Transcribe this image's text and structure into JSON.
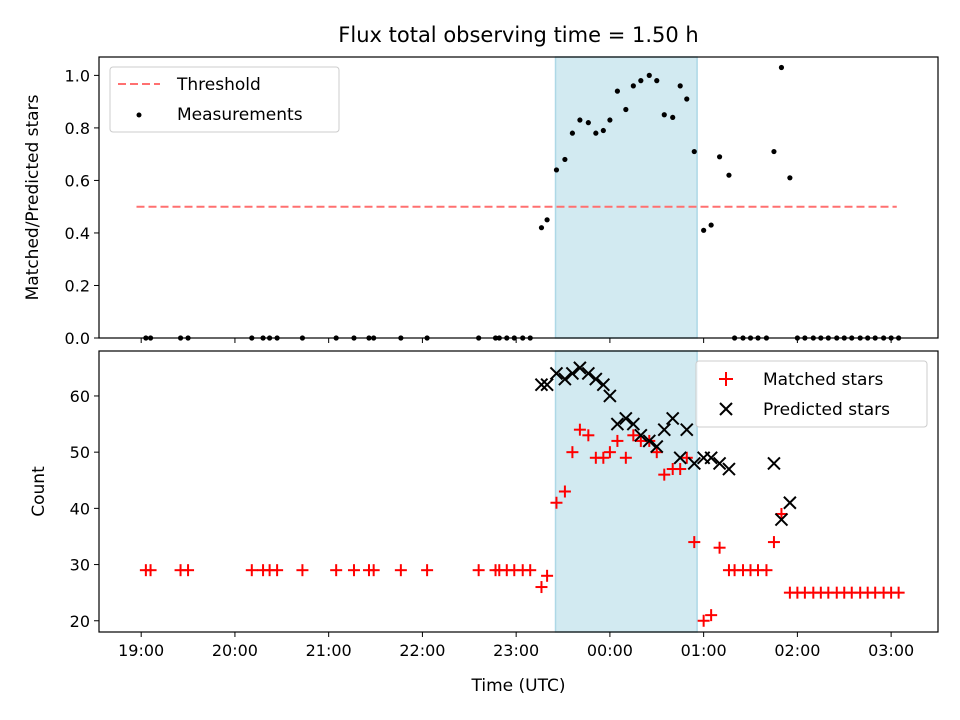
{
  "title": "Flux total observing time = 1.50 h",
  "colors": {
    "threshold": "#ff7070",
    "shade": "#add8e6",
    "matched": "#ff0000",
    "predicted": "#000000",
    "measure": "#000000"
  },
  "chart_data": [
    {
      "type": "scatter",
      "ylabel": "Matched/Predicted stars",
      "xlabel": "",
      "xlim": [
        18.55,
        27.5
      ],
      "ylim": [
        0,
        1.07
      ],
      "yticks": [
        0.0,
        0.2,
        0.4,
        0.6,
        0.8,
        1.0
      ],
      "ytick_labels": [
        "0.0",
        "0.2",
        "0.4",
        "0.6",
        "0.8",
        "1.0"
      ],
      "shaded_span": [
        23.42,
        24.93
      ],
      "legend": {
        "placement": "upper left",
        "entries": [
          "Threshold",
          "Measurements"
        ]
      },
      "threshold": {
        "name": "Threshold",
        "y": 0.5,
        "x": [
          18.95,
          27.06
        ],
        "style": "dashed"
      },
      "series": [
        {
          "name": "Measurements",
          "marker": "dot",
          "points": [
            [
              19.05,
              0
            ],
            [
              19.1,
              0
            ],
            [
              19.42,
              0
            ],
            [
              19.5,
              0
            ],
            [
              20.18,
              0
            ],
            [
              20.3,
              0
            ],
            [
              20.37,
              0
            ],
            [
              20.45,
              0
            ],
            [
              20.72,
              0
            ],
            [
              21.08,
              0
            ],
            [
              21.27,
              0
            ],
            [
              21.43,
              0
            ],
            [
              21.48,
              0
            ],
            [
              21.77,
              0
            ],
            [
              22.05,
              0
            ],
            [
              22.6,
              0
            ],
            [
              22.78,
              0
            ],
            [
              22.82,
              0
            ],
            [
              22.9,
              0
            ],
            [
              22.98,
              0
            ],
            [
              23.07,
              0
            ],
            [
              23.15,
              0
            ],
            [
              23.27,
              0.42
            ],
            [
              23.33,
              0.45
            ],
            [
              23.43,
              0.64
            ],
            [
              23.52,
              0.68
            ],
            [
              23.6,
              0.78
            ],
            [
              23.68,
              0.83
            ],
            [
              23.77,
              0.82
            ],
            [
              23.85,
              0.78
            ],
            [
              23.93,
              0.79
            ],
            [
              24.0,
              0.83
            ],
            [
              24.08,
              0.94
            ],
            [
              24.17,
              0.87
            ],
            [
              24.25,
              0.96
            ],
            [
              24.33,
              0.98
            ],
            [
              24.42,
              1.0
            ],
            [
              24.5,
              0.98
            ],
            [
              24.58,
              0.85
            ],
            [
              24.67,
              0.84
            ],
            [
              24.75,
              0.96
            ],
            [
              24.82,
              0.91
            ],
            [
              24.9,
              0.71
            ],
            [
              25.0,
              0.41
            ],
            [
              25.08,
              0.43
            ],
            [
              25.17,
              0.69
            ],
            [
              25.27,
              0.62
            ],
            [
              25.33,
              0
            ],
            [
              25.42,
              0
            ],
            [
              25.5,
              0
            ],
            [
              25.58,
              0
            ],
            [
              25.67,
              0
            ],
            [
              25.75,
              0.71
            ],
            [
              25.83,
              1.03
            ],
            [
              25.92,
              0.61
            ],
            [
              26.0,
              0
            ],
            [
              26.08,
              0
            ],
            [
              26.17,
              0
            ],
            [
              26.25,
              0
            ],
            [
              26.33,
              0
            ],
            [
              26.42,
              0
            ],
            [
              26.5,
              0
            ],
            [
              26.58,
              0
            ],
            [
              26.67,
              0
            ],
            [
              26.75,
              0
            ],
            [
              26.83,
              0
            ],
            [
              26.92,
              0
            ],
            [
              27.0,
              0
            ],
            [
              27.08,
              0
            ]
          ]
        }
      ]
    },
    {
      "type": "scatter",
      "ylabel": "Count",
      "xlabel": "Time (UTC)",
      "xlim": [
        18.55,
        27.5
      ],
      "ylim": [
        18,
        68
      ],
      "yticks": [
        20,
        30,
        40,
        50,
        60
      ],
      "ytick_labels": [
        "20",
        "30",
        "40",
        "50",
        "60"
      ],
      "xticks": [
        19,
        20,
        21,
        22,
        23,
        24,
        25,
        26,
        27
      ],
      "xtick_labels": [
        "19:00",
        "20:00",
        "21:00",
        "22:00",
        "23:00",
        "00:00",
        "01:00",
        "02:00",
        "03:00"
      ],
      "shaded_span": [
        23.42,
        24.93
      ],
      "legend": {
        "placement": "upper right",
        "entries": [
          "Matched stars",
          "Predicted stars"
        ]
      },
      "series": [
        {
          "name": "Matched stars",
          "marker": "plus",
          "points": [
            [
              19.05,
              29
            ],
            [
              19.1,
              29
            ],
            [
              19.42,
              29
            ],
            [
              19.5,
              29
            ],
            [
              20.18,
              29
            ],
            [
              20.3,
              29
            ],
            [
              20.37,
              29
            ],
            [
              20.45,
              29
            ],
            [
              20.72,
              29
            ],
            [
              21.08,
              29
            ],
            [
              21.27,
              29
            ],
            [
              21.43,
              29
            ],
            [
              21.48,
              29
            ],
            [
              21.77,
              29
            ],
            [
              22.05,
              29
            ],
            [
              22.6,
              29
            ],
            [
              22.78,
              29
            ],
            [
              22.82,
              29
            ],
            [
              22.9,
              29
            ],
            [
              22.98,
              29
            ],
            [
              23.07,
              29
            ],
            [
              23.15,
              29
            ],
            [
              23.27,
              26
            ],
            [
              23.33,
              28
            ],
            [
              23.43,
              41
            ],
            [
              23.52,
              43
            ],
            [
              23.6,
              50
            ],
            [
              23.68,
              54
            ],
            [
              23.77,
              53
            ],
            [
              23.85,
              49
            ],
            [
              23.93,
              49
            ],
            [
              24.0,
              50
            ],
            [
              24.08,
              52
            ],
            [
              24.17,
              49
            ],
            [
              24.25,
              53
            ],
            [
              24.33,
              52
            ],
            [
              24.42,
              52
            ],
            [
              24.5,
              50
            ],
            [
              24.58,
              46
            ],
            [
              24.67,
              47
            ],
            [
              24.75,
              47
            ],
            [
              24.82,
              49
            ],
            [
              24.9,
              34
            ],
            [
              25.0,
              20
            ],
            [
              25.08,
              21
            ],
            [
              25.17,
              33
            ],
            [
              25.27,
              29
            ],
            [
              25.33,
              29
            ],
            [
              25.42,
              29
            ],
            [
              25.5,
              29
            ],
            [
              25.58,
              29
            ],
            [
              25.67,
              29
            ],
            [
              25.75,
              34
            ],
            [
              25.83,
              39
            ],
            [
              25.92,
              25
            ],
            [
              26.0,
              25
            ],
            [
              26.08,
              25
            ],
            [
              26.17,
              25
            ],
            [
              26.25,
              25
            ],
            [
              26.33,
              25
            ],
            [
              26.42,
              25
            ],
            [
              26.5,
              25
            ],
            [
              26.58,
              25
            ],
            [
              26.67,
              25
            ],
            [
              26.75,
              25
            ],
            [
              26.83,
              25
            ],
            [
              26.92,
              25
            ],
            [
              27.0,
              25
            ],
            [
              27.08,
              25
            ]
          ]
        },
        {
          "name": "Predicted stars",
          "marker": "x",
          "points": [
            [
              23.27,
              62
            ],
            [
              23.33,
              62
            ],
            [
              23.43,
              64
            ],
            [
              23.52,
              63
            ],
            [
              23.6,
              64
            ],
            [
              23.68,
              65
            ],
            [
              23.77,
              64
            ],
            [
              23.85,
              63
            ],
            [
              23.93,
              62
            ],
            [
              24.0,
              60
            ],
            [
              24.08,
              55
            ],
            [
              24.17,
              56
            ],
            [
              24.25,
              55
            ],
            [
              24.33,
              53
            ],
            [
              24.42,
              52
            ],
            [
              24.5,
              51
            ],
            [
              24.58,
              54
            ],
            [
              24.67,
              56
            ],
            [
              24.75,
              49
            ],
            [
              24.82,
              54
            ],
            [
              24.9,
              48
            ],
            [
              25.0,
              49
            ],
            [
              25.08,
              49
            ],
            [
              25.17,
              48
            ],
            [
              25.27,
              47
            ],
            [
              25.75,
              48
            ],
            [
              25.83,
              38
            ],
            [
              25.92,
              41
            ]
          ]
        }
      ]
    }
  ]
}
